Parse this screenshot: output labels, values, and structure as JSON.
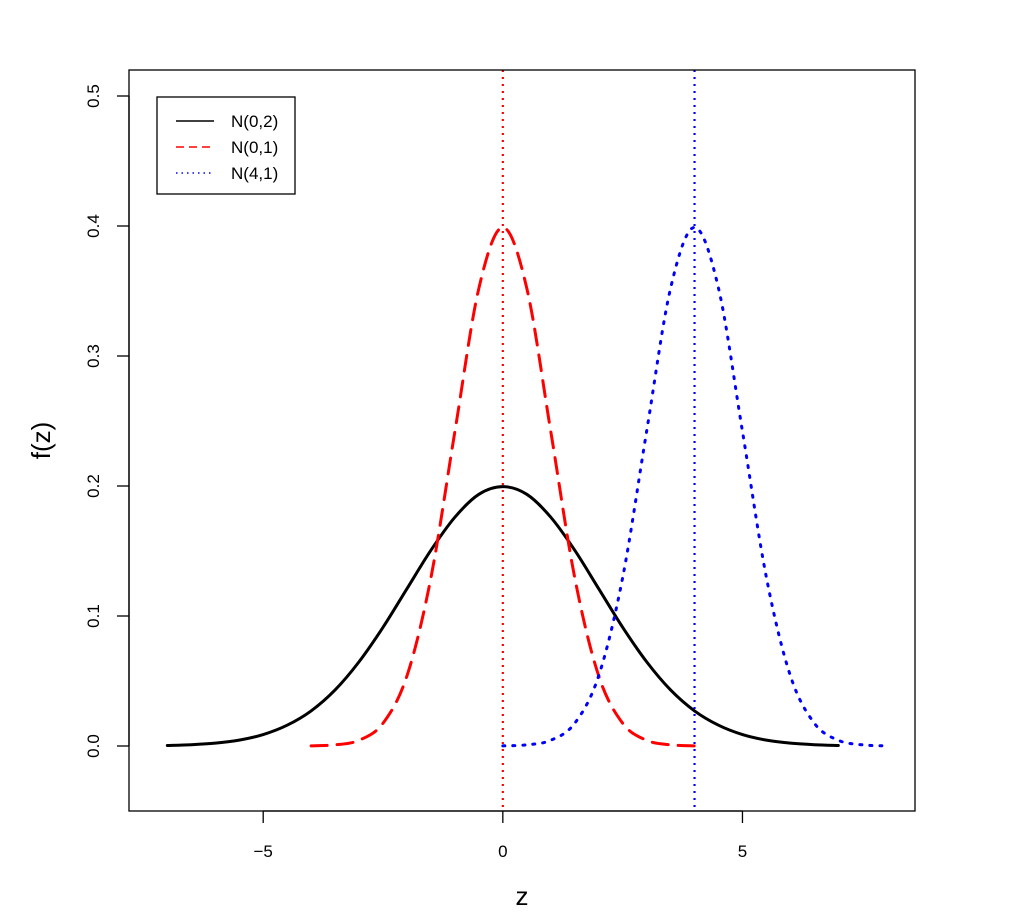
{
  "chart_data": {
    "type": "line",
    "title": "",
    "xlabel": "z",
    "ylabel": "f(z)",
    "xlim": [
      -7.8,
      8.6
    ],
    "ylim": [
      -0.05,
      0.52
    ],
    "xticks": [
      -5,
      0,
      5
    ],
    "xtick_labels": [
      "−5",
      "0",
      "5"
    ],
    "yticks": [
      0.0,
      0.1,
      0.2,
      0.3,
      0.4,
      0.5
    ],
    "ytick_labels": [
      "0.0",
      "0.1",
      "0.2",
      "0.3",
      "0.4",
      "0.5"
    ],
    "grid": false,
    "legend_position": "top-left",
    "series": [
      {
        "name": "N(0,2)",
        "color": "#000000",
        "style": "solid",
        "x": [
          -7,
          -6.5,
          -6,
          -5.5,
          -5,
          -4.5,
          -4,
          -3.5,
          -3,
          -2.5,
          -2,
          -1.5,
          -1,
          -0.5,
          0,
          0.5,
          1,
          1.5,
          2,
          2.5,
          3,
          3.5,
          4,
          4.5,
          5,
          5.5,
          6,
          6.5,
          7
        ],
        "y": [
          0.0004,
          0.001,
          0.0022,
          0.0045,
          0.0088,
          0.016,
          0.027,
          0.0431,
          0.0648,
          0.0913,
          0.121,
          0.1506,
          0.176,
          0.1936,
          0.1995,
          0.1936,
          0.176,
          0.1506,
          0.121,
          0.0913,
          0.0648,
          0.0431,
          0.027,
          0.016,
          0.0088,
          0.0045,
          0.0022,
          0.001,
          0.0004
        ]
      },
      {
        "name": "N(0,1)",
        "color": "#ff0000",
        "style": "dashed",
        "x": [
          -4,
          -3.5,
          -3,
          -2.5,
          -2,
          -1.5,
          -1,
          -0.5,
          0,
          0.5,
          1,
          1.5,
          2,
          2.5,
          3,
          3.5,
          4
        ],
        "y": [
          0.0001,
          0.0009,
          0.0044,
          0.0175,
          0.054,
          0.1295,
          0.242,
          0.3521,
          0.3989,
          0.3521,
          0.242,
          0.1295,
          0.054,
          0.0175,
          0.0044,
          0.0009,
          0.0001
        ]
      },
      {
        "name": "N(4,1)",
        "color": "#0000ff",
        "style": "dotted",
        "x": [
          0,
          0.5,
          1,
          1.5,
          2,
          2.5,
          3,
          3.5,
          4,
          4.5,
          5,
          5.5,
          6,
          6.5,
          7,
          7.5,
          8
        ],
        "y": [
          0.0001,
          0.0009,
          0.0044,
          0.0175,
          0.054,
          0.1295,
          0.242,
          0.3521,
          0.3989,
          0.3521,
          0.242,
          0.1295,
          0.054,
          0.0175,
          0.0044,
          0.0009,
          0.0001
        ]
      }
    ],
    "vlines": [
      {
        "x": 0,
        "color": "#ff0000",
        "style": "dotted"
      },
      {
        "x": 4,
        "color": "#0000ff",
        "style": "dotted"
      }
    ]
  }
}
